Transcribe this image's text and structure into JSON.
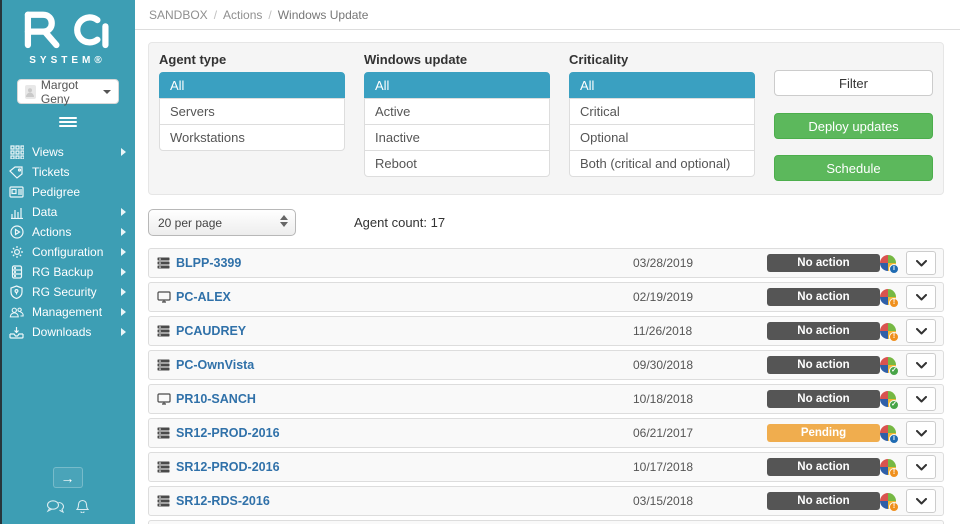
{
  "sidebar": {
    "brand": "RG",
    "brand_sub": "SYSTEM®",
    "user": {
      "name": "Margot Geny"
    },
    "items": [
      {
        "label": "Views",
        "icon": "grid-icon",
        "expandable": true
      },
      {
        "label": "Tickets",
        "icon": "tag-icon",
        "expandable": false
      },
      {
        "label": "Pedigree",
        "icon": "id-card-icon",
        "expandable": false
      },
      {
        "label": "Data",
        "icon": "chart-icon",
        "expandable": true
      },
      {
        "label": "Actions",
        "icon": "play-icon",
        "expandable": true
      },
      {
        "label": "Configuration",
        "icon": "gear-icon",
        "expandable": true
      },
      {
        "label": "RG Backup",
        "icon": "database-icon",
        "expandable": true
      },
      {
        "label": "RG Security",
        "icon": "shield-icon",
        "expandable": true
      },
      {
        "label": "Management",
        "icon": "users-icon",
        "expandable": true
      },
      {
        "label": "Downloads",
        "icon": "download-icon",
        "expandable": true
      }
    ]
  },
  "breadcrumb": {
    "items": [
      "SANDBOX",
      "Actions",
      "Windows Update"
    ],
    "separator": "/"
  },
  "filters": {
    "groups": [
      {
        "label": "Agent type",
        "options": [
          "All",
          "Servers",
          "Workstations"
        ],
        "selected": "All"
      },
      {
        "label": "Windows update",
        "options": [
          "All",
          "Active",
          "Inactive",
          "Reboot"
        ],
        "selected": "All"
      },
      {
        "label": "Criticality",
        "options": [
          "All",
          "Critical",
          "Optional",
          "Both (critical and optional)"
        ],
        "selected": "All"
      }
    ],
    "filter_button": "Filter",
    "deploy_button": "Deploy updates",
    "schedule_button": "Schedule"
  },
  "toolbar": {
    "per_page": "20 per page",
    "agent_count": "Agent count: 17"
  },
  "table": {
    "rows": [
      {
        "name": "BLPP-3399",
        "device": "server",
        "date": "03/28/2019",
        "action": "No action",
        "action_type": "none",
        "status": "info"
      },
      {
        "name": "PC-ALEX",
        "device": "workstation",
        "date": "02/19/2019",
        "action": "No action",
        "action_type": "none",
        "status": "warning"
      },
      {
        "name": "PCAUDREY",
        "device": "server",
        "date": "11/26/2018",
        "action": "No action",
        "action_type": "none",
        "status": "warning"
      },
      {
        "name": "PC-OwnVista",
        "device": "server",
        "date": "09/30/2018",
        "action": "No action",
        "action_type": "none",
        "status": "ok"
      },
      {
        "name": "PR10-SANCH",
        "device": "workstation",
        "date": "10/18/2018",
        "action": "No action",
        "action_type": "none",
        "status": "ok"
      },
      {
        "name": "SR12-PROD-2016",
        "device": "server",
        "date": "06/21/2017",
        "action": "Pending",
        "action_type": "pending",
        "status": "info"
      },
      {
        "name": "SR12-PROD-2016",
        "device": "server",
        "date": "10/17/2018",
        "action": "No action",
        "action_type": "none",
        "status": "warning"
      },
      {
        "name": "SR12-RDS-2016",
        "device": "server",
        "date": "03/15/2018",
        "action": "No action",
        "action_type": "none",
        "status": "warning"
      }
    ]
  },
  "status_glyphs": {
    "info": "i",
    "warning": "!",
    "ok": "✓"
  },
  "colors": {
    "sidebar": "#3d9eb4",
    "selected_option": "#3aa0c1",
    "button_green": "#5cb85c",
    "badge_no_action": "#555555",
    "badge_pending": "#f0ad4e",
    "link_blue": "#3071a9",
    "status_info": "#1f6bb2",
    "status_warning": "#ef8f1c",
    "status_ok": "#47a447"
  }
}
